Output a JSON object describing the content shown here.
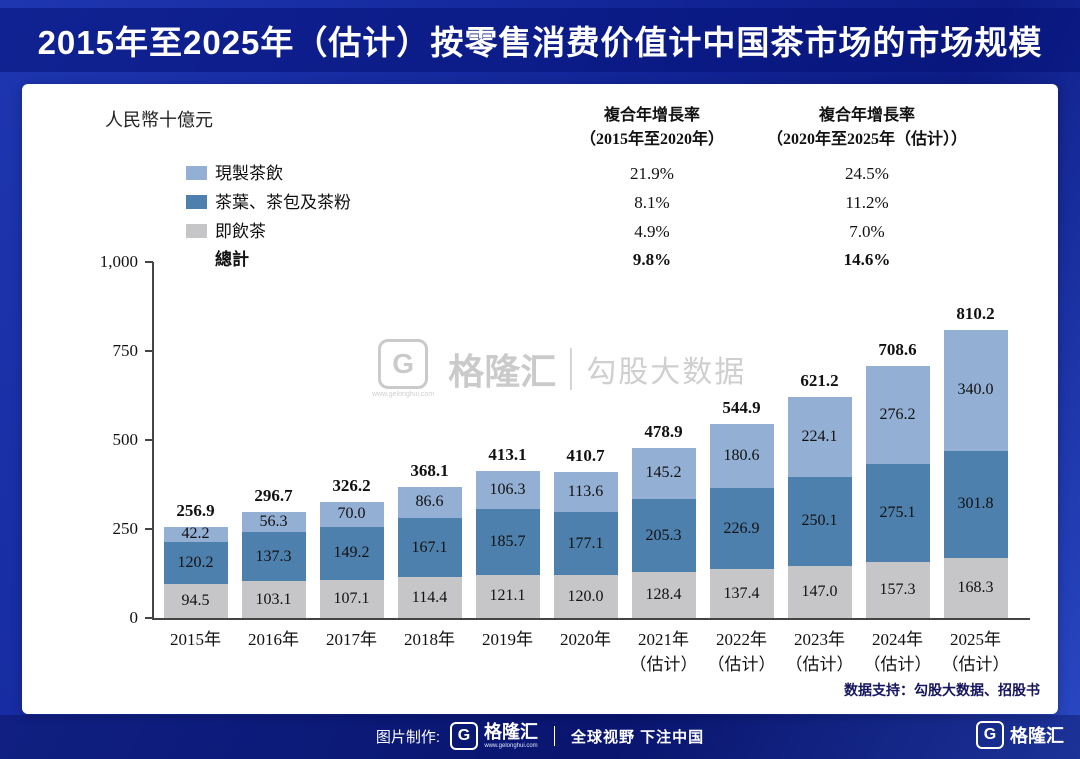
{
  "title": "2015年至2025年（估计）按零售消费价值计中国茶市场的市场规模",
  "chart_data": {
    "type": "bar",
    "stacked": true,
    "unit_label": "人民幣十億元",
    "ylim": [
      0,
      1000
    ],
    "yticks": [
      "0",
      "250",
      "500",
      "750",
      "1,000"
    ],
    "ytick_values": [
      0,
      250,
      500,
      750,
      1000
    ],
    "categories": [
      "2015年",
      "2016年",
      "2017年",
      "2018年",
      "2019年",
      "2020年",
      "2021年\n（估计）",
      "2022年\n（估计）",
      "2023年\n（估计）",
      "2024年\n（估计）",
      "2025年\n（估计）"
    ],
    "series": [
      {
        "name": "即飲茶",
        "color": "#c6c6c8",
        "values": [
          94.5,
          103.1,
          107.1,
          114.4,
          121.1,
          120.0,
          128.4,
          137.4,
          147.0,
          157.3,
          168.3
        ]
      },
      {
        "name": "茶葉、茶包及茶粉",
        "color": "#4e80ae",
        "values": [
          120.2,
          137.3,
          149.2,
          167.1,
          185.7,
          177.1,
          205.3,
          226.9,
          250.1,
          275.1,
          301.8
        ]
      },
      {
        "name": "現製茶飲",
        "color": "#93afd4",
        "values": [
          42.2,
          56.3,
          70.0,
          86.6,
          106.3,
          113.6,
          145.2,
          180.6,
          224.1,
          276.2,
          340.0
        ]
      }
    ],
    "totals": [
      256.9,
      296.7,
      326.2,
      368.1,
      413.1,
      410.7,
      478.9,
      544.9,
      621.2,
      708.6,
      810.2
    ],
    "legend_position": "top-left",
    "grid": false
  },
  "legend": {
    "cagr_header_1": "複合年增長率\n（2015年至2020年）",
    "cagr_header_2": "複合年增長率\n（2020年至2025年（估计））",
    "rows": [
      {
        "label": "現製茶飲",
        "swatch_style": "background:#93afd4",
        "cagr1": "21.9%",
        "cagr2": "24.5%"
      },
      {
        "label": "茶葉、茶包及茶粉",
        "swatch_style": "background:#4e80ae",
        "cagr1": "8.1%",
        "cagr2": "11.2%"
      },
      {
        "label": "即飲茶",
        "swatch_style": "background:#c6c6c8",
        "cagr1": "4.9%",
        "cagr2": "7.0%"
      },
      {
        "label": "總計",
        "cagr1": "9.8%",
        "cagr2": "14.6%"
      }
    ]
  },
  "watermark": {
    "logo_letter": "G",
    "brand": "格隆汇",
    "sub": "勾股大数据",
    "url": "www.gelonghui.com"
  },
  "footer_note": "数据支持：勾股大数据、招股书",
  "footer_bar": {
    "made_by": "图片制作:",
    "logo_letter": "G",
    "brand": "格隆汇",
    "url": "www.gelonghui.com",
    "slogan": "全球视野 下注中国",
    "corner_brand": "格隆汇"
  },
  "colors": {
    "background_blue": "#13279a",
    "title_band": "#081a78",
    "card": "#ffffff",
    "series_fresh_tea": "#93afd4",
    "series_tea_leaf": "#4e80ae",
    "series_rtd_tea": "#c6c6c8",
    "axis": "#444444"
  }
}
